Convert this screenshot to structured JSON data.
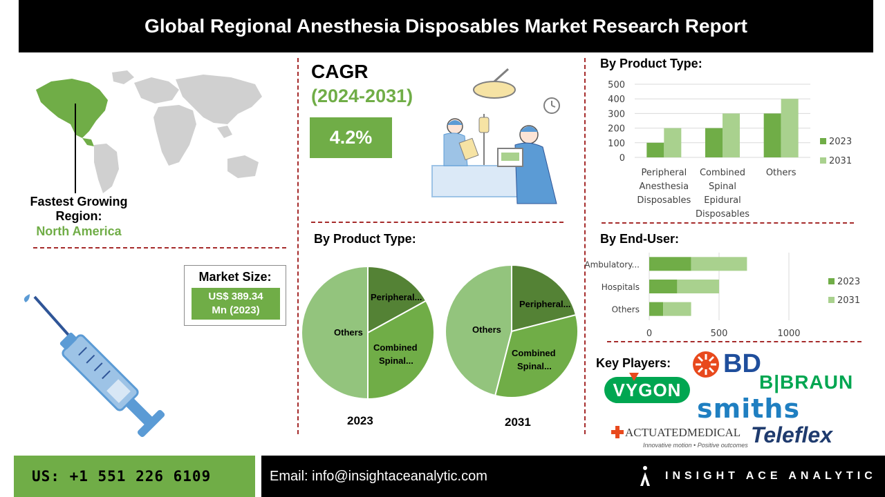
{
  "header": {
    "title": "Global Regional Anesthesia Disposables Market Research Report"
  },
  "region": {
    "label": "Fastest Growing Region:",
    "value": "North America"
  },
  "market_size": {
    "label": "Market Size:",
    "value_line1": "US$ 389.34",
    "value_line2": "Mn (2023)"
  },
  "cagr": {
    "label": "CAGR",
    "period": "(2024-2031)",
    "value": "4.2%"
  },
  "pies": {
    "title": "By Product Type:",
    "slices_order": [
      "Peripheral...",
      "Combined Spinal...",
      "Others"
    ],
    "pie_2023": {
      "year": "2023",
      "labels": [
        "Peripheral...",
        "Combined\nSpinal...",
        "Others"
      ]
    },
    "pie_2031": {
      "year": "2031",
      "labels": [
        "Peripheral...",
        "Combined\nSpinal...",
        "Others"
      ]
    }
  },
  "key_players": {
    "title": "Key Players:",
    "logos": [
      "BD",
      "B|BRAUN",
      "VYGON",
      "smiths",
      "ACTUATEDMEDICAL",
      "Innovative motion • Positive outcomes",
      "Teleflex"
    ]
  },
  "footer": {
    "phone": "US: +1 551 226 6109",
    "email": "Email: info@insightaceanalytic.com",
    "brand": "INSIGHT ACE ANALYTIC"
  },
  "colors": {
    "accent": "#70ad47",
    "light_green": "#a9d18e",
    "dark_green": "#548235",
    "divider": "#a52a2a"
  },
  "chart_data": [
    {
      "type": "bar",
      "title": "By Product Type:",
      "categories": [
        "Peripheral Anesthesia Disposables",
        "Combined Spinal Epidural Disposables",
        "Others"
      ],
      "category_lines": [
        [
          "Peripheral",
          "Anesthesia",
          "Disposables"
        ],
        [
          "Combined",
          "Spinal",
          "Epidural",
          "Disposables"
        ],
        [
          "Others"
        ]
      ],
      "series": [
        {
          "name": "2023",
          "values": [
            100,
            200,
            300
          ],
          "color": "#70ad47"
        },
        {
          "name": "2031",
          "values": [
            200,
            300,
            400
          ],
          "color": "#a9d18e"
        }
      ],
      "ylim": [
        0,
        500
      ],
      "yticks": [
        "0",
        "100",
        "200",
        "300",
        "400",
        "500"
      ],
      "grid": true,
      "legend": "right"
    },
    {
      "type": "bar",
      "orientation": "horizontal",
      "stacked": true,
      "title": "By End-User:",
      "categories": [
        "Ambulatory...",
        "Hospitals",
        "Others"
      ],
      "series": [
        {
          "name": "2023",
          "values": [
            300,
            200,
            100
          ],
          "color": "#70ad47"
        },
        {
          "name": "2031",
          "values": [
            400,
            300,
            200
          ],
          "color": "#a9d18e"
        }
      ],
      "xlim": [
        0,
        1000
      ],
      "xticks": [
        "0",
        "500",
        "1000"
      ],
      "grid": true,
      "legend": "right"
    },
    {
      "type": "pie",
      "year": "2023",
      "categories": [
        "Peripheral...",
        "Combined Spinal...",
        "Others"
      ],
      "values": [
        17,
        33,
        50
      ],
      "colors": [
        "#548235",
        "#70ad47",
        "#93c47d"
      ]
    },
    {
      "type": "pie",
      "year": "2031",
      "categories": [
        "Peripheral...",
        "Combined Spinal...",
        "Others"
      ],
      "values": [
        21,
        33,
        46
      ],
      "colors": [
        "#548235",
        "#70ad47",
        "#93c47d"
      ]
    }
  ]
}
